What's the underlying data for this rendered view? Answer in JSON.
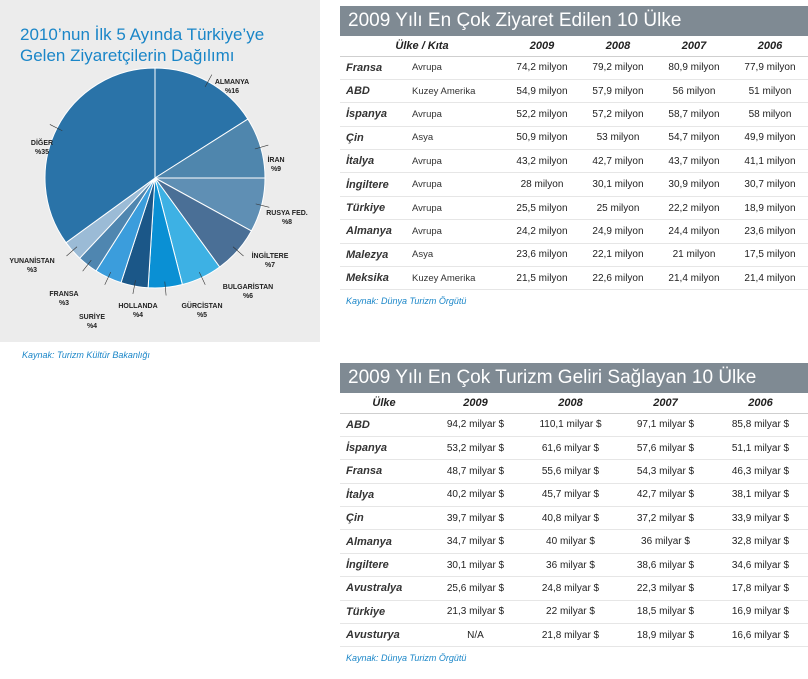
{
  "pie_panel": {
    "title_line1": "2010’nun İlk 5 Ayında Türkiye’ye",
    "title_line2": "Gelen Ziyaretçilerin Dağılımı",
    "source": "Kaynak: Turizm Kültür Bakanlığı"
  },
  "chart_data": {
    "type": "pie",
    "title": "2010’nun İlk 5 Ayında Türkiye’ye Gelen Ziyaretçilerin Dağılımı",
    "slices": [
      {
        "label": "ALMANYA",
        "pct_label": "%16",
        "value": 16,
        "color": "#2a73a8"
      },
      {
        "label": "İRAN",
        "pct_label": "%9",
        "value": 9,
        "color": "#4f86ad"
      },
      {
        "label": "RUSYA FED.",
        "pct_label": "%8",
        "value": 8,
        "color": "#5f8fb4"
      },
      {
        "label": "İNGİLTERE",
        "pct_label": "%7",
        "value": 7,
        "color": "#4a6f96"
      },
      {
        "label": "BULGARİSTAN",
        "pct_label": "%6",
        "value": 6,
        "color": "#3db1e4"
      },
      {
        "label": "GÜRCİSTAN",
        "pct_label": "%5",
        "value": 5,
        "color": "#0a90d4"
      },
      {
        "label": "HOLLANDA",
        "pct_label": "%4",
        "value": 4,
        "color": "#1b5788"
      },
      {
        "label": "SURİYE",
        "pct_label": "%4",
        "value": 4,
        "color": "#3b9ddc"
      },
      {
        "label": "FRANSA",
        "pct_label": "%3",
        "value": 3,
        "color": "#4f86b0"
      },
      {
        "label": "YUNANİSTAN",
        "pct_label": "%3",
        "value": 3,
        "color": "#9bbbd6"
      },
      {
        "label": "DİĞER",
        "pct_label": "%35",
        "value": 35,
        "color": "#2a73a8"
      }
    ]
  },
  "visitors_table": {
    "title": "2009 Yılı En Çok Ziyaret Edilen 10 Ülke",
    "headers": [
      "Ülke / Kıta",
      "2009",
      "2008",
      "2007",
      "2006"
    ],
    "rows": [
      [
        "Fransa",
        "Avrupa",
        "74,2 milyon",
        "79,2 milyon",
        "80,9 milyon",
        "77,9 milyon"
      ],
      [
        "ABD",
        "Kuzey Amerika",
        "54,9 milyon",
        "57,9 milyon",
        "56 milyon",
        "51 milyon"
      ],
      [
        "İspanya",
        "Avrupa",
        "52,2 milyon",
        "57,2 milyon",
        "58,7 milyon",
        "58 milyon"
      ],
      [
        "Çin",
        "Asya",
        "50,9 milyon",
        "53 milyon",
        "54,7 milyon",
        "49,9 milyon"
      ],
      [
        "İtalya",
        "Avrupa",
        "43,2 milyon",
        "42,7 milyon",
        "43,7 milyon",
        "41,1 milyon"
      ],
      [
        "İngiltere",
        "Avrupa",
        "28 milyon",
        "30,1 milyon",
        "30,9 milyon",
        "30,7 milyon"
      ],
      [
        "Türkiye",
        "Avrupa",
        "25,5 milyon",
        "25 milyon",
        "22,2 milyon",
        "18,9 milyon"
      ],
      [
        "Almanya",
        "Avrupa",
        "24,2 milyon",
        "24,9 milyon",
        "24,4 milyon",
        "23,6 milyon"
      ],
      [
        "Malezya",
        "Asya",
        "23,6 milyon",
        "22,1 milyon",
        "21 milyon",
        "17,5 milyon"
      ],
      [
        "Meksika",
        "Kuzey Amerika",
        "21,5 milyon",
        "22,6 milyon",
        "21,4 milyon",
        "21,4 milyon"
      ]
    ],
    "source": "Kaynak: Dünya Turizm Örgütü"
  },
  "revenue_table": {
    "title": "2009 Yılı En Çok Turizm Geliri Sağlayan 10 Ülke",
    "headers": [
      "Ülke",
      "2009",
      "2008",
      "2007",
      "2006"
    ],
    "rows": [
      [
        "ABD",
        "94,2 milyar $",
        "110,1 milyar $",
        "97,1 milyar $",
        "85,8 milyar $"
      ],
      [
        "İspanya",
        "53,2 milyar $",
        "61,6 milyar $",
        "57,6 milyar $",
        "51,1 milyar $"
      ],
      [
        "Fransa",
        "48,7 milyar $",
        "55,6 milyar $",
        "54,3 milyar $",
        "46,3 milyar $"
      ],
      [
        "İtalya",
        "40,2 milyar $",
        "45,7 milyar $",
        "42,7 milyar $",
        "38,1 milyar $"
      ],
      [
        "Çin",
        "39,7 milyar $",
        "40,8 milyar $",
        "37,2 milyar $",
        "33,9 milyar $"
      ],
      [
        "Almanya",
        "34,7 milyar $",
        "40 milyar $",
        "36 milyar $",
        "32,8 milyar $"
      ],
      [
        "İngiltere",
        "30,1 milyar $",
        "36 milyar $",
        "38,6 milyar $",
        "34,6 milyar $"
      ],
      [
        "Avustralya",
        "25,6 milyar $",
        "24,8 milyar $",
        "22,3 milyar $",
        "17,8 milyar $"
      ],
      [
        "Türkiye",
        "21,3 milyar $",
        "22 milyar $",
        "18,5 milyar $",
        "16,9 milyar $"
      ],
      [
        "Avusturya",
        "N/A",
        "21,8 milyar $",
        "18,9 milyar $",
        "16,6 milyar $"
      ]
    ],
    "source": "Kaynak: Dünya Turizm Örgütü"
  }
}
